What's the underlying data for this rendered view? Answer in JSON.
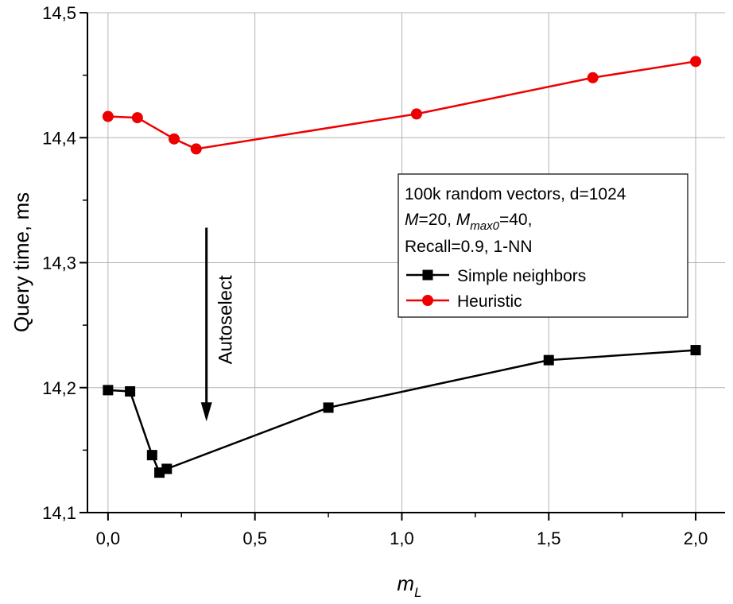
{
  "chart_data": {
    "type": "line",
    "xlabel": "m",
    "xlabel_sub": "L",
    "ylabel": "Query time, ms",
    "xlim": [
      -0.07,
      2.1
    ],
    "ylim": [
      14.1,
      14.5
    ],
    "xticks": [
      0.0,
      0.5,
      1.0,
      1.5,
      2.0
    ],
    "xtick_labels": [
      "0,0",
      "0,5",
      "1,0",
      "1,5",
      "2,0"
    ],
    "yticks": [
      14.1,
      14.2,
      14.3,
      14.4,
      14.5
    ],
    "ytick_labels": [
      "14,1",
      "14,2",
      "14,3",
      "14,4",
      "14,5"
    ],
    "grid": true,
    "series": [
      {
        "name": "Simple neighbors",
        "color": "#000000",
        "marker": "square",
        "x": [
          0.0,
          0.075,
          0.15,
          0.175,
          0.2,
          0.75,
          1.5,
          2.0
        ],
        "y": [
          14.198,
          14.197,
          14.146,
          14.132,
          14.135,
          14.184,
          14.222,
          14.23
        ]
      },
      {
        "name": "Heuristic",
        "color": "#ee0000",
        "marker": "circle",
        "x": [
          0.0,
          0.1,
          0.225,
          0.3,
          1.05,
          1.65,
          2.0
        ],
        "y": [
          14.417,
          14.416,
          14.399,
          14.391,
          14.419,
          14.448,
          14.461
        ]
      }
    ],
    "legend": {
      "position": "right-middle",
      "header_line1": "100k random vectors, d=1024",
      "header_line2_parts": [
        "M",
        "=20, ",
        "M",
        "max0",
        "=40,"
      ],
      "header_line3": "Recall=0.9, 1-NN"
    },
    "annotation": {
      "text": "Autoselect",
      "arrow_from": [
        0.335,
        14.328
      ],
      "arrow_to": [
        0.335,
        14.173
      ]
    }
  }
}
